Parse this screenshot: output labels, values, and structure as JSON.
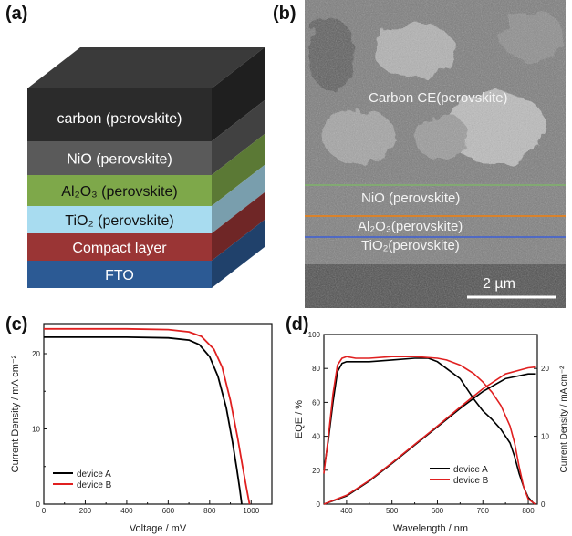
{
  "figure": {
    "panel_labels": [
      "(a)",
      "(b)",
      "(c)",
      "(d)"
    ],
    "layer_stack": {
      "layers": [
        {
          "label": "carbon (perovskite)",
          "color": "#2b2b2b"
        },
        {
          "label": "NiO (perovskite)",
          "color": "#5a5a5a"
        },
        {
          "label": "Al₂O₃ (perovskite)",
          "color": "#7ea84a"
        },
        {
          "label": "TiO₂ (perovskite)",
          "color": "#a8dcf0"
        },
        {
          "label": "Compact layer",
          "color": "#9a3535"
        },
        {
          "label": "FTO",
          "color": "#2c5a94"
        }
      ]
    },
    "sem": {
      "labels": [
        "Carbon CE(perovskite)",
        "NiO (perovskite)",
        "Al₂O₃(perovskite)",
        "TiO₂(perovskite)"
      ],
      "scale_bar": "2 µm",
      "line_colors": [
        "#7fb36a",
        "#d9822b",
        "#3d5fd6"
      ]
    }
  },
  "chart_data": [
    {
      "type": "line",
      "xlabel": "Voltage / mV",
      "ylabel": "Current Density / mA cm⁻²",
      "xlim": [
        0,
        1100
      ],
      "ylim": [
        0,
        24
      ],
      "x_ticks": [
        "0",
        "200",
        "400",
        "600",
        "800",
        "1000"
      ],
      "y_ticks": [
        "0",
        "10",
        "20"
      ],
      "legend_position": "bottom-left",
      "series": [
        {
          "name": "device A",
          "color": "#000000",
          "x": [
            0,
            200,
            400,
            600,
            700,
            750,
            800,
            840,
            880,
            910,
            930,
            945,
            955
          ],
          "y": [
            22.2,
            22.2,
            22.2,
            22.1,
            21.8,
            21.2,
            19.6,
            17.0,
            12.8,
            8.3,
            4.8,
            2.0,
            0
          ]
        },
        {
          "name": "device B",
          "color": "#e02020",
          "x": [
            0,
            200,
            400,
            600,
            700,
            760,
            820,
            860,
            900,
            935,
            960,
            980,
            992
          ],
          "y": [
            23.3,
            23.3,
            23.3,
            23.2,
            22.9,
            22.3,
            20.6,
            18.2,
            13.8,
            8.8,
            4.8,
            1.8,
            0
          ]
        }
      ]
    },
    {
      "type": "line",
      "xlabel": "Wavelength / nm",
      "ylabel": "EQE / %",
      "ylabel_right": "Current Density / mA cm⁻²",
      "xlim": [
        350,
        820
      ],
      "ylim": [
        0,
        100
      ],
      "ylim_right": [
        0,
        25
      ],
      "x_ticks": [
        "400",
        "500",
        "600",
        "700",
        "800"
      ],
      "y_ticks": [
        "0",
        "20",
        "40",
        "60",
        "80",
        "100"
      ],
      "y_ticks_right": [
        "0",
        "10",
        "20"
      ],
      "legend_position": "bottom-right",
      "series": [
        {
          "name": "device A",
          "color": "#000000",
          "axis": "left",
          "x": [
            350,
            360,
            370,
            380,
            390,
            400,
            420,
            450,
            500,
            550,
            580,
            600,
            620,
            650,
            680,
            700,
            720,
            740,
            760,
            770,
            780,
            790,
            800,
            810,
            815
          ],
          "y": [
            20,
            38,
            60,
            78,
            83,
            84,
            84,
            84,
            85,
            86,
            86,
            84,
            80,
            74,
            62,
            55,
            50,
            44,
            36,
            28,
            18,
            10,
            4,
            1,
            0
          ]
        },
        {
          "name": "device B",
          "color": "#e02020",
          "axis": "left",
          "x": [
            350,
            360,
            370,
            380,
            390,
            400,
            420,
            450,
            500,
            550,
            600,
            620,
            650,
            680,
            700,
            720,
            740,
            760,
            770,
            780,
            790,
            800,
            810,
            815
          ],
          "y": [
            18,
            40,
            65,
            82,
            86,
            87,
            86,
            86,
            87,
            87,
            86,
            85,
            82,
            77,
            72,
            66,
            58,
            46,
            36,
            22,
            10,
            3,
            1,
            0
          ]
        },
        {
          "name": "device A",
          "color": "#000000",
          "axis": "right",
          "x": [
            350,
            400,
            450,
            500,
            550,
            600,
            650,
            700,
            750,
            800,
            815
          ],
          "y": [
            0,
            1.2,
            3.4,
            6.0,
            8.7,
            11.4,
            14.1,
            16.6,
            18.5,
            19.2,
            19.2
          ]
        },
        {
          "name": "device B",
          "color": "#e02020",
          "axis": "right",
          "x": [
            350,
            400,
            450,
            500,
            550,
            600,
            650,
            700,
            750,
            800,
            815
          ],
          "y": [
            0,
            1.3,
            3.5,
            6.1,
            8.8,
            11.5,
            14.3,
            17.0,
            19.2,
            20.1,
            20.2
          ]
        }
      ]
    }
  ]
}
